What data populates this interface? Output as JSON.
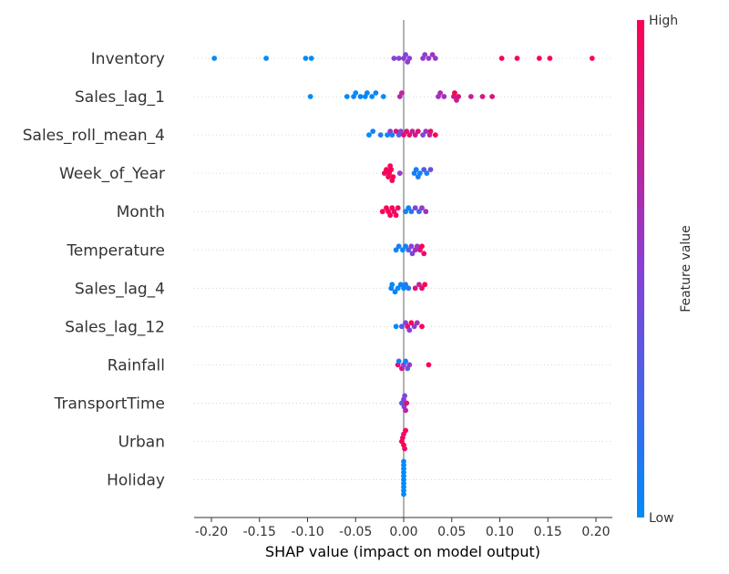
{
  "chart_data": {
    "type": "scatter",
    "title": "",
    "xlabel": "SHAP value (impact on model output)",
    "xlim": [
      -0.215,
      0.215
    ],
    "xticks": [
      "-0.20",
      "-0.15",
      "-0.10",
      "-0.05",
      "0.00",
      "0.05",
      "0.10",
      "0.15",
      "0.20"
    ],
    "xtick_values": [
      -0.2,
      -0.15,
      -0.1,
      -0.05,
      0.0,
      0.05,
      0.1,
      0.15,
      0.2
    ],
    "colorbar": {
      "label": "Feature value",
      "high": "High",
      "low": "Low",
      "low_color": "#008bfb",
      "high_color": "#ff0052"
    },
    "features": [
      {
        "name": "Inventory",
        "points": [
          {
            "x": -0.197,
            "v": 0.0
          },
          {
            "x": -0.143,
            "v": 0.0
          },
          {
            "x": -0.102,
            "v": 0.0
          },
          {
            "x": -0.096,
            "v": 0.0
          },
          {
            "x": -0.01,
            "v": 0.5
          },
          {
            "x": -0.005,
            "v": 0.45
          },
          {
            "x": 0.0,
            "v": 0.5
          },
          {
            "x": 0.002,
            "v": 0.45
          },
          {
            "x": 0.004,
            "v": 0.55
          },
          {
            "x": 0.006,
            "v": 0.5
          },
          {
            "x": 0.02,
            "v": 0.55
          },
          {
            "x": 0.022,
            "v": 0.5
          },
          {
            "x": 0.026,
            "v": 0.55
          },
          {
            "x": 0.03,
            "v": 0.6
          },
          {
            "x": 0.033,
            "v": 0.55
          },
          {
            "x": 0.102,
            "v": 1.0
          },
          {
            "x": 0.118,
            "v": 1.0
          },
          {
            "x": 0.141,
            "v": 1.0
          },
          {
            "x": 0.152,
            "v": 1.0
          },
          {
            "x": 0.196,
            "v": 1.0
          }
        ]
      },
      {
        "name": "Sales_lag_1",
        "points": [
          {
            "x": -0.097,
            "v": 0.0
          },
          {
            "x": -0.059,
            "v": 0.0
          },
          {
            "x": -0.052,
            "v": 0.05
          },
          {
            "x": -0.05,
            "v": 0.0
          },
          {
            "x": -0.045,
            "v": 0.05
          },
          {
            "x": -0.04,
            "v": 0.0
          },
          {
            "x": -0.038,
            "v": 0.05
          },
          {
            "x": -0.033,
            "v": 0.0
          },
          {
            "x": -0.029,
            "v": 0.05
          },
          {
            "x": -0.021,
            "v": 0.0
          },
          {
            "x": -0.004,
            "v": 0.65
          },
          {
            "x": -0.002,
            "v": 0.7
          },
          {
            "x": 0.036,
            "v": 0.6
          },
          {
            "x": 0.038,
            "v": 0.65
          },
          {
            "x": 0.042,
            "v": 0.6
          },
          {
            "x": 0.052,
            "v": 0.8
          },
          {
            "x": 0.053,
            "v": 1.0
          },
          {
            "x": 0.055,
            "v": 0.75
          },
          {
            "x": 0.057,
            "v": 0.85
          },
          {
            "x": 0.07,
            "v": 0.75
          },
          {
            "x": 0.082,
            "v": 0.8
          },
          {
            "x": 0.092,
            "v": 0.85
          }
        ]
      },
      {
        "name": "Sales_roll_mean_4",
        "points": [
          {
            "x": -0.036,
            "v": 0.0
          },
          {
            "x": -0.032,
            "v": 0.05
          },
          {
            "x": -0.024,
            "v": 0.1
          },
          {
            "x": -0.017,
            "v": 0.05
          },
          {
            "x": -0.014,
            "v": 0.55
          },
          {
            "x": -0.012,
            "v": 0.1
          },
          {
            "x": -0.008,
            "v": 0.85
          },
          {
            "x": -0.005,
            "v": 0.3
          },
          {
            "x": -0.003,
            "v": 0.5
          },
          {
            "x": 0.0,
            "v": 0.9
          },
          {
            "x": 0.003,
            "v": 0.85
          },
          {
            "x": 0.006,
            "v": 0.9
          },
          {
            "x": 0.009,
            "v": 0.75
          },
          {
            "x": 0.012,
            "v": 0.8
          },
          {
            "x": 0.015,
            "v": 0.85
          },
          {
            "x": 0.02,
            "v": 0.45
          },
          {
            "x": 0.023,
            "v": 0.55
          },
          {
            "x": 0.027,
            "v": 0.7
          },
          {
            "x": 0.028,
            "v": 0.9
          },
          {
            "x": 0.033,
            "v": 1.0
          }
        ]
      },
      {
        "name": "Week_of_Year",
        "points": [
          {
            "x": -0.02,
            "v": 0.95
          },
          {
            "x": -0.018,
            "v": 1.0
          },
          {
            "x": -0.016,
            "v": 0.95
          },
          {
            "x": -0.015,
            "v": 1.0
          },
          {
            "x": -0.014,
            "v": 0.95
          },
          {
            "x": -0.013,
            "v": 1.0
          },
          {
            "x": -0.012,
            "v": 0.95
          },
          {
            "x": -0.011,
            "v": 1.0
          },
          {
            "x": -0.004,
            "v": 0.55
          },
          {
            "x": 0.011,
            "v": 0.1
          },
          {
            "x": 0.013,
            "v": 0.05
          },
          {
            "x": 0.015,
            "v": 0.1
          },
          {
            "x": 0.017,
            "v": 0.05
          },
          {
            "x": 0.021,
            "v": 0.3
          },
          {
            "x": 0.024,
            "v": 0.1
          },
          {
            "x": 0.028,
            "v": 0.4
          }
        ]
      },
      {
        "name": "Month",
        "points": [
          {
            "x": -0.022,
            "v": 1.0
          },
          {
            "x": -0.018,
            "v": 0.95
          },
          {
            "x": -0.016,
            "v": 1.0
          },
          {
            "x": -0.014,
            "v": 0.95
          },
          {
            "x": -0.012,
            "v": 1.0
          },
          {
            "x": -0.01,
            "v": 0.9
          },
          {
            "x": -0.008,
            "v": 1.0
          },
          {
            "x": -0.006,
            "v": 0.95
          },
          {
            "x": 0.002,
            "v": 0.1
          },
          {
            "x": 0.005,
            "v": 0.05
          },
          {
            "x": 0.008,
            "v": 0.15
          },
          {
            "x": 0.012,
            "v": 0.5
          },
          {
            "x": 0.016,
            "v": 0.2
          },
          {
            "x": 0.019,
            "v": 0.55
          },
          {
            "x": 0.023,
            "v": 0.6
          }
        ]
      },
      {
        "name": "Temperature",
        "points": [
          {
            "x": -0.008,
            "v": 0.05
          },
          {
            "x": -0.005,
            "v": 0.1
          },
          {
            "x": -0.001,
            "v": 0.0
          },
          {
            "x": 0.002,
            "v": 0.05
          },
          {
            "x": 0.005,
            "v": 0.35
          },
          {
            "x": 0.008,
            "v": 0.5
          },
          {
            "x": 0.009,
            "v": 0.45
          },
          {
            "x": 0.012,
            "v": 0.6
          },
          {
            "x": 0.014,
            "v": 0.55
          },
          {
            "x": 0.017,
            "v": 0.85
          },
          {
            "x": 0.019,
            "v": 1.0
          },
          {
            "x": 0.021,
            "v": 0.9
          }
        ]
      },
      {
        "name": "Sales_lag_4",
        "points": [
          {
            "x": -0.012,
            "v": 0.0
          },
          {
            "x": -0.013,
            "v": 0.05
          },
          {
            "x": -0.009,
            "v": 0.05
          },
          {
            "x": -0.006,
            "v": 0.0
          },
          {
            "x": -0.003,
            "v": 0.05
          },
          {
            "x": 0.0,
            "v": 0.0
          },
          {
            "x": 0.002,
            "v": 0.1
          },
          {
            "x": 0.005,
            "v": 0.15
          },
          {
            "x": 0.012,
            "v": 0.85
          },
          {
            "x": 0.016,
            "v": 0.7
          },
          {
            "x": 0.019,
            "v": 0.9
          },
          {
            "x": 0.022,
            "v": 1.0
          }
        ]
      },
      {
        "name": "Sales_lag_12",
        "points": [
          {
            "x": -0.008,
            "v": 0.0
          },
          {
            "x": -0.002,
            "v": 0.3
          },
          {
            "x": 0.002,
            "v": 0.45
          },
          {
            "x": 0.004,
            "v": 0.9
          },
          {
            "x": 0.006,
            "v": 0.5
          },
          {
            "x": 0.008,
            "v": 1.0
          },
          {
            "x": 0.011,
            "v": 0.55
          },
          {
            "x": 0.014,
            "v": 0.6
          },
          {
            "x": 0.019,
            "v": 1.0
          }
        ]
      },
      {
        "name": "Rainfall",
        "points": [
          {
            "x": -0.006,
            "v": 0.9
          },
          {
            "x": -0.005,
            "v": 0.1
          },
          {
            "x": -0.002,
            "v": 0.8
          },
          {
            "x": 0.0,
            "v": 0.5
          },
          {
            "x": 0.002,
            "v": 0.05
          },
          {
            "x": 0.004,
            "v": 0.3
          },
          {
            "x": 0.006,
            "v": 0.55
          },
          {
            "x": 0.026,
            "v": 1.0
          }
        ]
      },
      {
        "name": "TransportTime",
        "points": [
          {
            "x": -0.002,
            "v": 0.3
          },
          {
            "x": 0.0,
            "v": 0.5
          },
          {
            "x": 0.001,
            "v": 0.45
          },
          {
            "x": 0.002,
            "v": 0.7
          },
          {
            "x": 0.003,
            "v": 0.85
          },
          {
            "x": 0.0005,
            "v": 0.55
          }
        ]
      },
      {
        "name": "Urban",
        "points": [
          {
            "x": -0.002,
            "v": 1.0
          },
          {
            "x": -0.001,
            "v": 0.95
          },
          {
            "x": 0.0,
            "v": 1.0
          },
          {
            "x": 0.001,
            "v": 0.95
          },
          {
            "x": 0.002,
            "v": 1.0
          },
          {
            "x": 0.0,
            "v": 0.9
          }
        ]
      },
      {
        "name": "Holiday",
        "points": [
          {
            "x": 0.0,
            "v": 0.0
          },
          {
            "x": 0.0,
            "v": 0.0
          },
          {
            "x": 0.0,
            "v": 0.0
          },
          {
            "x": 0.0,
            "v": 0.0
          },
          {
            "x": 0.0,
            "v": 0.0
          },
          {
            "x": 0.0,
            "v": 0.0
          },
          {
            "x": 0.0,
            "v": 0.0
          },
          {
            "x": 0.0,
            "v": 0.0
          },
          {
            "x": 0.0,
            "v": 0.0
          },
          {
            "x": 0.0,
            "v": 0.0
          }
        ]
      }
    ]
  }
}
